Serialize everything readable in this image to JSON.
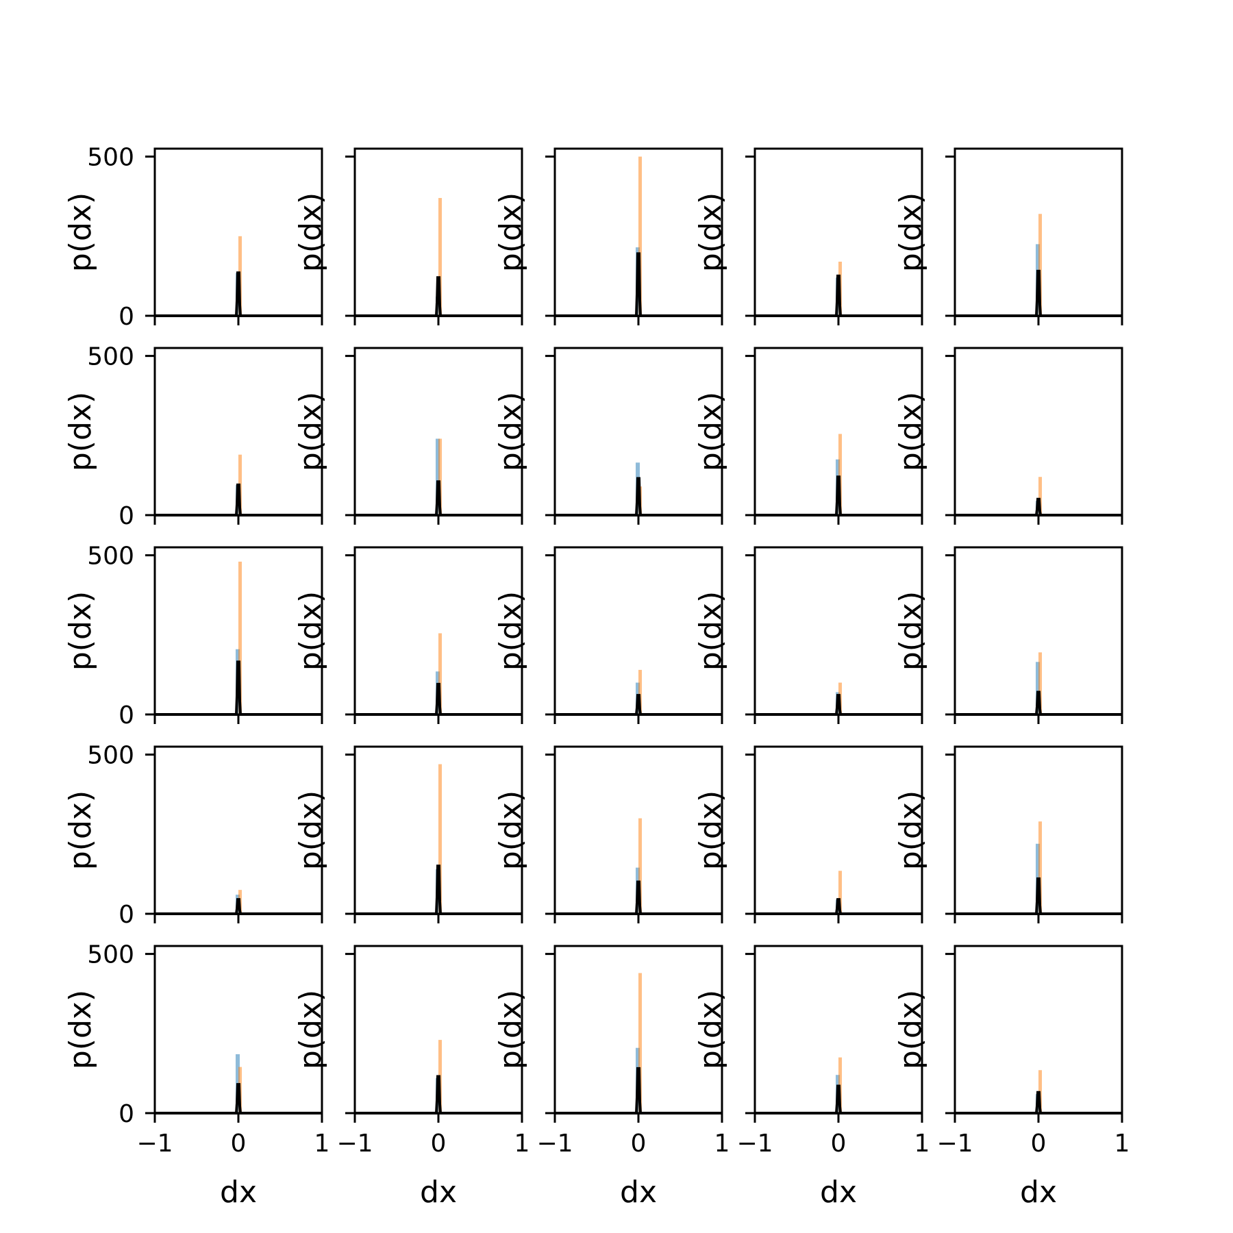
{
  "chart_data": {
    "type": "bar",
    "layout": "5x5 grid of histogram subplots",
    "xlabel": "dx",
    "ylabel": "p(dx)",
    "xlim": [
      -1,
      1
    ],
    "ylim": [
      0,
      525
    ],
    "x_ticks": [
      -1,
      0,
      1
    ],
    "x_tick_labels": [
      "−1",
      "0",
      "1"
    ],
    "y_ticks": [
      0,
      500
    ],
    "y_tick_labels": [
      "0",
      "500"
    ],
    "colors": {
      "series_a": "#1f77b4",
      "series_b": "#ff7f0e",
      "curve": "#000000"
    },
    "bar_alpha": 0.5,
    "panels": [
      {
        "blue": 135,
        "orange": 250,
        "black": 135
      },
      {
        "blue": 60,
        "orange": 370,
        "black": 120
      },
      {
        "blue": 215,
        "orange": 500,
        "black": 195
      },
      {
        "blue": 120,
        "orange": 170,
        "black": 125
      },
      {
        "blue": 225,
        "orange": 320,
        "black": 140
      },
      {
        "blue": 95,
        "orange": 190,
        "black": 95
      },
      {
        "blue": 240,
        "orange": 240,
        "black": 105
      },
      {
        "blue": 165,
        "orange": 90,
        "black": 115
      },
      {
        "blue": 175,
        "orange": 255,
        "black": 120
      },
      {
        "blue": 45,
        "orange": 120,
        "black": 50
      },
      {
        "blue": 205,
        "orange": 480,
        "black": 165
      },
      {
        "blue": 135,
        "orange": 255,
        "black": 95
      },
      {
        "blue": 100,
        "orange": 140,
        "black": 60
      },
      {
        "blue": 70,
        "orange": 100,
        "black": 60
      },
      {
        "blue": 165,
        "orange": 195,
        "black": 70
      },
      {
        "blue": 60,
        "orange": 75,
        "black": 45
      },
      {
        "blue": 140,
        "orange": 470,
        "black": 150
      },
      {
        "blue": 145,
        "orange": 300,
        "black": 100
      },
      {
        "blue": 45,
        "orange": 135,
        "black": 45
      },
      {
        "blue": 220,
        "orange": 290,
        "black": 110
      },
      {
        "blue": 185,
        "orange": 145,
        "black": 90
      },
      {
        "blue": 110,
        "orange": 230,
        "black": 115
      },
      {
        "blue": 205,
        "orange": 440,
        "black": 140
      },
      {
        "blue": 120,
        "orange": 175,
        "black": 85
      },
      {
        "blue": 60,
        "orange": 135,
        "black": 65
      }
    ]
  }
}
